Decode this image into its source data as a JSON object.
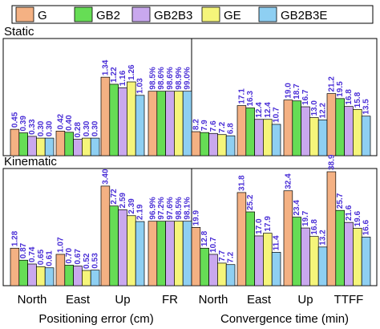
{
  "chart_data": {
    "type": "bar",
    "legend": {
      "placement": "top",
      "entries": [
        "G",
        "GB2",
        "GB2B3",
        "GE",
        "GB2B3E"
      ]
    },
    "colors": [
      "#F4B183",
      "#66DD55",
      "#C9A8EE",
      "#F5F57A",
      "#8ECFF2"
    ],
    "label_color": "#4A2FD6",
    "grid": false,
    "categories": [
      "North",
      "East",
      "Up",
      "FR",
      "North",
      "East",
      "Up",
      "TTFF"
    ],
    "group_labels": [
      "Positioning error (cm)",
      "Convergence time (min)"
    ],
    "panels": [
      {
        "name": "Static",
        "groups": [
          {
            "category": "North",
            "values": [
              0.45,
              0.39,
              0.33,
              0.3,
              0.3
            ],
            "labels": [
              "0.45",
              "0.39",
              "0.33",
              "0.30",
              "0.30"
            ]
          },
          {
            "category": "East",
            "values": [
              0.42,
              0.4,
              0.28,
              0.3,
              0.3
            ],
            "labels": [
              "0.42",
              "0.40",
              "0.28",
              "0.30",
              "0.30"
            ]
          },
          {
            "category": "Up",
            "values": [
              1.34,
              1.22,
              1.16,
              1.26,
              1.03
            ],
            "labels": [
              "1.34",
              "1.22",
              "1.16",
              "1.26",
              "1.03"
            ]
          },
          {
            "category": "FR",
            "values": [
              98.5,
              98.6,
              98.6,
              98.9,
              99.0
            ],
            "labels": [
              "98.5%",
              "98.6%",
              "98.6%",
              "98.9%",
              "99.0%"
            ]
          },
          {
            "category": "North",
            "values": [
              8.2,
              7.9,
              7.6,
              7.2,
              6.8
            ],
            "labels": [
              "8.2",
              "7.9",
              "7.6",
              "7.2",
              "6.8"
            ]
          },
          {
            "category": "East",
            "values": [
              17.1,
              16.3,
              12.4,
              12.4,
              10.7
            ],
            "labels": [
              "17.1",
              "16.3",
              "12.4",
              "12.4",
              "10.7"
            ]
          },
          {
            "category": "Up",
            "values": [
              19.0,
              18.7,
              16.7,
              13.0,
              12.2
            ],
            "labels": [
              "19.0",
              "18.7",
              "16.7",
              "13.0",
              "12.2"
            ]
          },
          {
            "category": "TTFF",
            "values": [
              21.2,
              19.5,
              16.8,
              15.8,
              13.5
            ],
            "labels": [
              "21.2",
              "19.5",
              "16.8",
              "15.8",
              "13.5"
            ]
          }
        ]
      },
      {
        "name": "Kinematic",
        "groups": [
          {
            "category": "North",
            "values": [
              1.28,
              0.87,
              0.74,
              0.65,
              0.61
            ],
            "labels": [
              "1.28",
              "0.87",
              "0.74",
              "0.65",
              "0.61"
            ]
          },
          {
            "category": "East",
            "values": [
              1.07,
              0.7,
              0.67,
              0.52,
              0.53
            ],
            "labels": [
              "1.07",
              "0.70",
              "0.67",
              "0.52",
              "0.53"
            ]
          },
          {
            "category": "Up",
            "values": [
              3.4,
              2.72,
              2.59,
              2.39,
              2.19
            ],
            "labels": [
              "3.40",
              "2.72",
              "2.59",
              "2.39",
              "2.19"
            ]
          },
          {
            "category": "FR",
            "values": [
              96.9,
              97.2,
              97.6,
              98.5,
              98.1
            ],
            "labels": [
              "96.9%",
              "97.2%",
              "97.6%",
              "98.5%",
              "98.1%"
            ]
          },
          {
            "category": "North",
            "values": [
              19.9,
              12.8,
              10.7,
              7.7,
              7.2
            ],
            "labels": [
              "19.9",
              "12.8",
              "10.7",
              "7.7",
              "7.2"
            ]
          },
          {
            "category": "East",
            "values": [
              31.8,
              25.2,
              17.0,
              17.9,
              11.4
            ],
            "labels": [
              "31.8",
              "25.2",
              "17.0",
              "17.9",
              "11.4"
            ]
          },
          {
            "category": "Up",
            "values": [
              32.4,
              23.4,
              19.7,
              16.8,
              13.2
            ],
            "labels": [
              "32.4",
              "23.4",
              "19.7",
              "16.8",
              "13.2"
            ]
          },
          {
            "category": "TTFF",
            "values": [
              38.9,
              25.7,
              21.6,
              19.6,
              16.6
            ],
            "labels": [
              "38.9",
              "25.7",
              "21.6",
              "19.6",
              "16.6"
            ]
          }
        ]
      }
    ]
  }
}
